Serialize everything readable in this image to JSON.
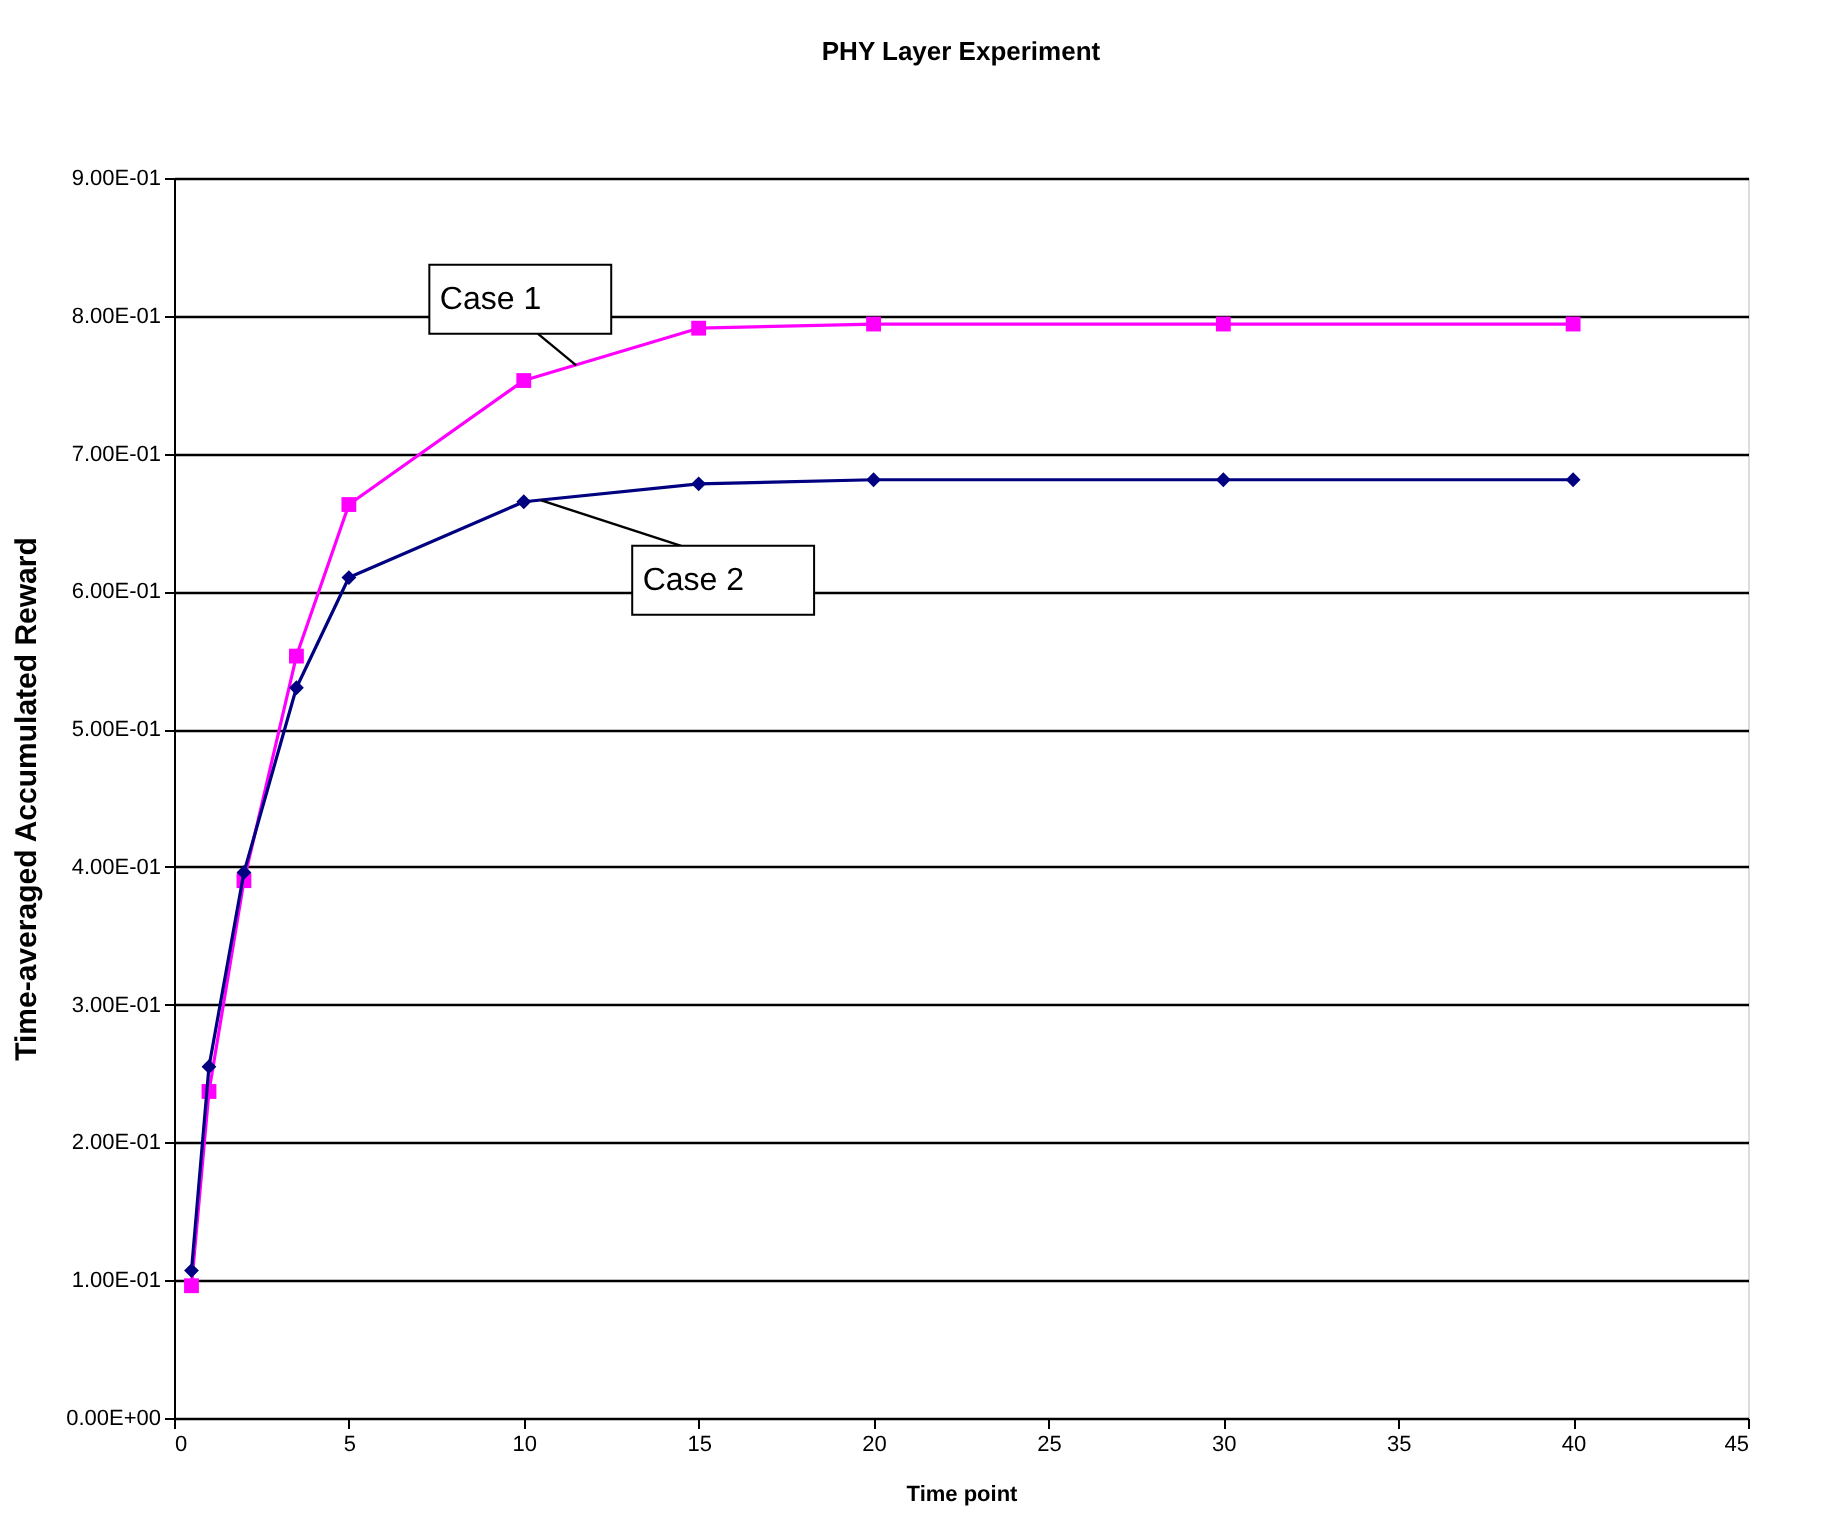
{
  "chart_data": {
    "type": "line",
    "title": "PHY Layer Experiment",
    "xlabel": "Time point",
    "ylabel": "Time-averaged Accumulated Reward",
    "x": [
      0.5,
      1,
      2,
      3.5,
      5,
      10,
      15,
      20,
      30,
      40
    ],
    "series": [
      {
        "color": "#ff00ff",
        "marker": "square",
        "values": [
          0.096,
          0.237,
          0.39,
          0.553,
          0.663,
          0.753,
          0.791,
          0.794,
          0.794,
          0.794
        ]
      },
      {
        "color": "#000080",
        "marker": "diamond",
        "values": [
          0.107,
          0.255,
          0.396,
          0.53,
          0.61,
          0.665,
          0.678,
          0.681,
          0.681,
          0.681
        ]
      }
    ],
    "xlim": [
      0,
      45
    ],
    "xticks": [
      0,
      5,
      10,
      15,
      20,
      25,
      30,
      35,
      40,
      45
    ],
    "ylim": [
      0,
      0.9
    ],
    "yticks": [
      {
        "value": 0,
        "label": "0.00E+00"
      },
      {
        "value": 0.1,
        "label": "1.00E-01"
      },
      {
        "value": 0.2,
        "label": "2.00E-01"
      },
      {
        "value": 0.3,
        "label": "3.00E-01"
      },
      {
        "value": 0.4,
        "label": "4.00E-01"
      },
      {
        "value": 0.5,
        "label": "5.00E-01"
      },
      {
        "value": 0.6,
        "label": "6.00E-01"
      },
      {
        "value": 0.7,
        "label": "7.00E-01"
      },
      {
        "value": 0.8,
        "label": "8.00E-01"
      },
      {
        "value": 0.9,
        "label": "9.00E-01"
      }
    ],
    "annotations": [
      {
        "text": "Case 1",
        "x": 11.5,
        "y": 0.764
      },
      {
        "text": "Case 2",
        "x": 10.5,
        "y": 0.666
      }
    ],
    "grid": "y",
    "line_style": "solid"
  }
}
